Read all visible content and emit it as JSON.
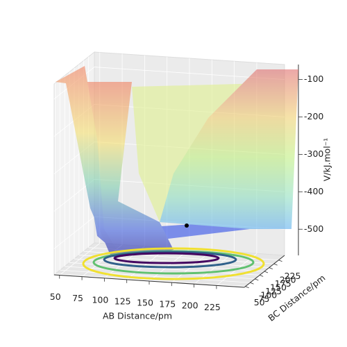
{
  "chart_data": {
    "type": "surface3d",
    "xlabel": "AB Distance/pm",
    "ylabel": "BC Distance/pm",
    "zlabel": "V/kJ.mol⁻¹",
    "xlim": [
      44,
      256
    ],
    "ylim": [
      44,
      256
    ],
    "zlim": [
      -570,
      -60
    ],
    "xticks": [
      50,
      75,
      100,
      125,
      150,
      175,
      200,
      225
    ],
    "yticks": [
      50,
      75,
      100,
      125,
      150,
      175,
      200,
      225
    ],
    "zticks": [
      -500,
      -400,
      -300,
      -200,
      -100
    ],
    "grid": true
  }
}
